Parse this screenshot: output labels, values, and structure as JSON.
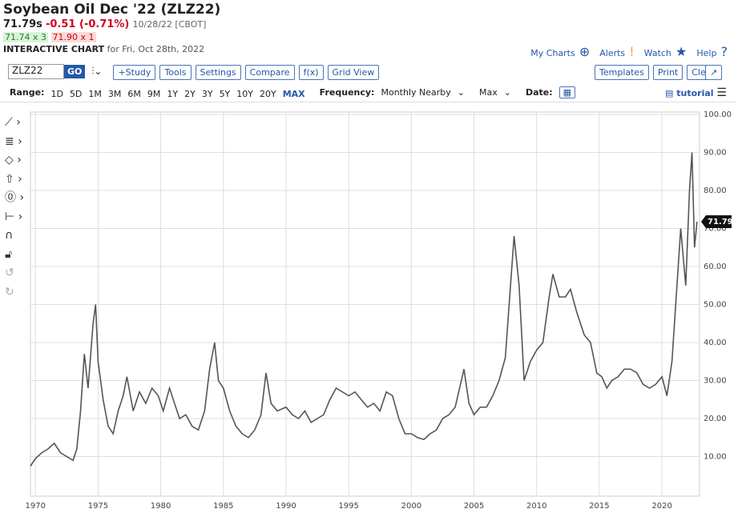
{
  "header": {
    "title": "Soybean Oil Dec '22 (ZLZ22)",
    "price": "71.79s",
    "change": "-0.51 (-0.71%)",
    "exchange": "10/28/22 [CBOT]",
    "bid": "71.74 x 3",
    "ask": "71.90 x 1",
    "chart_label": "INTERACTIVE CHART",
    "chart_date": "for Fri, Oct 28th, 2022",
    "links": [
      "My Charts",
      "Alerts",
      "Watch",
      "Help"
    ]
  },
  "toolbar": {
    "symbol": "ZLZ22",
    "go": "GO",
    "buttons": [
      "+Study",
      "Tools",
      "Settings",
      "Compare",
      "f(x)",
      "Grid View"
    ],
    "right_buttons": [
      "Templates",
      "Print",
      "Clear"
    ]
  },
  "range_bar": {
    "range_label": "Range:",
    "ranges": [
      "1D",
      "5D",
      "1M",
      "3M",
      "6M",
      "9M",
      "1Y",
      "2Y",
      "3Y",
      "5Y",
      "10Y",
      "20Y",
      "MAX"
    ],
    "frequency_label": "Frequency:",
    "frequency": "Monthly Nearby",
    "period": "Max",
    "date_label": "Date:",
    "tutorial": "tutorial"
  },
  "chart_data": {
    "type": "line",
    "color": "#555555",
    "grid": true,
    "x": [
      1969.6,
      1970,
      1970.5,
      1971,
      1971.5,
      1972,
      1972.5,
      1973,
      1973.3,
      1973.6,
      1973.9,
      1974.2,
      1974.6,
      1974.8,
      1975,
      1975.4,
      1975.8,
      1976.2,
      1976.6,
      1977,
      1977.3,
      1977.8,
      1978.3,
      1978.8,
      1979.3,
      1979.8,
      1980.2,
      1980.7,
      1981,
      1981.5,
      1982,
      1982.5,
      1983,
      1983.5,
      1983.9,
      1984.3,
      1984.6,
      1985,
      1985.5,
      1986,
      1986.5,
      1987,
      1987.5,
      1988,
      1988.4,
      1988.8,
      1989.3,
      1990,
      1990.5,
      1991,
      1991.5,
      1992,
      1992.5,
      1993,
      1993.5,
      1994,
      1994.5,
      1995,
      1995.5,
      1996,
      1996.5,
      1997,
      1997.5,
      1998,
      1998.5,
      1999,
      1999.5,
      2000,
      2000.5,
      2001,
      2001.5,
      2002,
      2002.5,
      2003,
      2003.5,
      2004.2,
      2004.6,
      2005,
      2005.5,
      2006,
      2006.5,
      2007,
      2007.5,
      2008.2,
      2008.6,
      2009,
      2009.5,
      2010,
      2010.5,
      2011,
      2011.3,
      2011.8,
      2012.3,
      2012.7,
      2013.2,
      2013.8,
      2014.3,
      2014.8,
      2015.2,
      2015.6,
      2016,
      2016.5,
      2017,
      2017.5,
      2018,
      2018.5,
      2019,
      2019.5,
      2020,
      2020.4,
      2020.8,
      2021.2,
      2021.5,
      2021.9,
      2022.2,
      2022.4,
      2022.6,
      2022.8
    ],
    "values": [
      7.5,
      9.5,
      11,
      12,
      13.5,
      11,
      10,
      9,
      12,
      22,
      37,
      28,
      45,
      50,
      35,
      25,
      18,
      16,
      22,
      26,
      31,
      22,
      27,
      24,
      28,
      26,
      22,
      28,
      25,
      20,
      21,
      18,
      17,
      22,
      33,
      40,
      30,
      28,
      22,
      18,
      16,
      15,
      17,
      21,
      32,
      24,
      22,
      23,
      21,
      20,
      22,
      19,
      20,
      21,
      25,
      28,
      27,
      26,
      27,
      25,
      23,
      24,
      22,
      27,
      26,
      20,
      16,
      16,
      15,
      14.5,
      16,
      17,
      20,
      21,
      23,
      33,
      24,
      21,
      23,
      23,
      26,
      30,
      36,
      68,
      55,
      30,
      35,
      38,
      40,
      52,
      58,
      52,
      52,
      54,
      48,
      42,
      40,
      32,
      31,
      28,
      30,
      31,
      33,
      33,
      32,
      29,
      28,
      29,
      31,
      26,
      35,
      55,
      70,
      55,
      80,
      90,
      65,
      71.79
    ],
    "last_price": 71.79,
    "xlim": [
      1969.6,
      2023
    ],
    "xticks": [
      1970,
      1975,
      1980,
      1985,
      1990,
      1995,
      2000,
      2005,
      2010,
      2015,
      2020
    ],
    "ylim": [
      0,
      100
    ],
    "yticks": [
      {
        "value": 10,
        "label": "10.00"
      },
      {
        "value": 20,
        "label": "20.00"
      },
      {
        "value": 30,
        "label": "30.00"
      },
      {
        "value": 40,
        "label": "40.00"
      },
      {
        "value": 50,
        "label": "50.00"
      },
      {
        "value": 60,
        "label": "60.00"
      },
      {
        "value": 70,
        "label": "70.00"
      },
      {
        "value": 80,
        "label": "80.00"
      },
      {
        "value": 90,
        "label": "90.00"
      },
      {
        "value": 100,
        "label": "100.00"
      }
    ]
  }
}
